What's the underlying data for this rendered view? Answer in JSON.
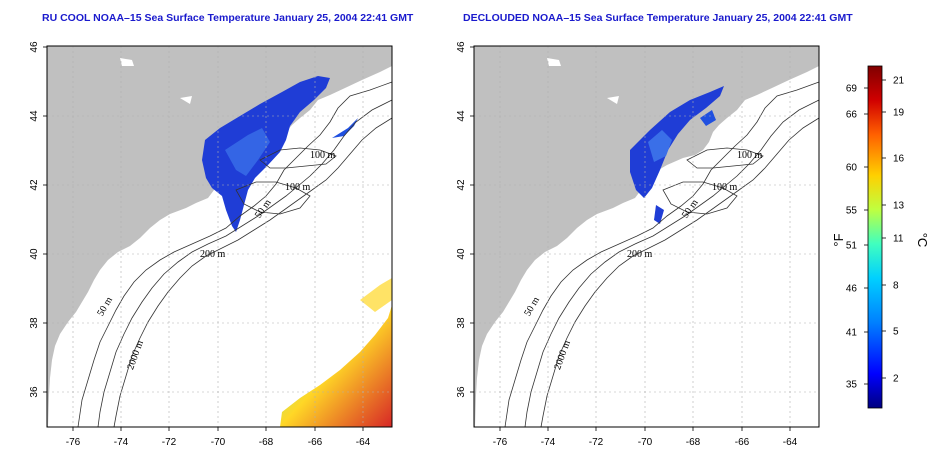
{
  "panels": [
    {
      "id": "left",
      "title": "RU COOL NOAA–15 Sea Surface Temperature January 25, 2004 22:41 GMT",
      "contour_labels": [
        "100 m",
        "100 m",
        "50 m",
        "200 m",
        "50 m",
        "2000 m"
      ]
    },
    {
      "id": "right",
      "title": "DECLOUDED NOAA–15 Sea Surface Temperature January 25, 2004 22:41 GMT",
      "contour_labels": [
        "100 m",
        "100 m",
        "50 m",
        "200 m",
        "50 m",
        "2000 m"
      ]
    }
  ],
  "axes": {
    "x_ticks": [
      "-76",
      "-74",
      "-72",
      "-70",
      "-68",
      "-66",
      "-64"
    ],
    "y_ticks": [
      "36",
      "38",
      "40",
      "42",
      "44",
      "46"
    ],
    "x_range": [
      -77.2,
      -62.9
    ],
    "y_range": [
      35.0,
      46.0
    ],
    "grid": "dotted"
  },
  "colorbar": {
    "fahrenheit_ticks": [
      "69",
      "66",
      "60",
      "55",
      "51",
      "46",
      "41",
      "35"
    ],
    "celsius_ticks": [
      "21",
      "19",
      "16",
      "13",
      "11",
      "8",
      "5",
      "2"
    ],
    "fahrenheit_unit": "°F",
    "celsius_unit": "°C",
    "colors": [
      "#000080",
      "#0000ff",
      "#0080ff",
      "#00d0ff",
      "#40ffbf",
      "#bfff40",
      "#ffd000",
      "#ff6000",
      "#d00000",
      "#800000"
    ]
  },
  "colors": {
    "land": "#c0c0c0",
    "title": "#1a1acd",
    "contour": "#333333"
  }
}
